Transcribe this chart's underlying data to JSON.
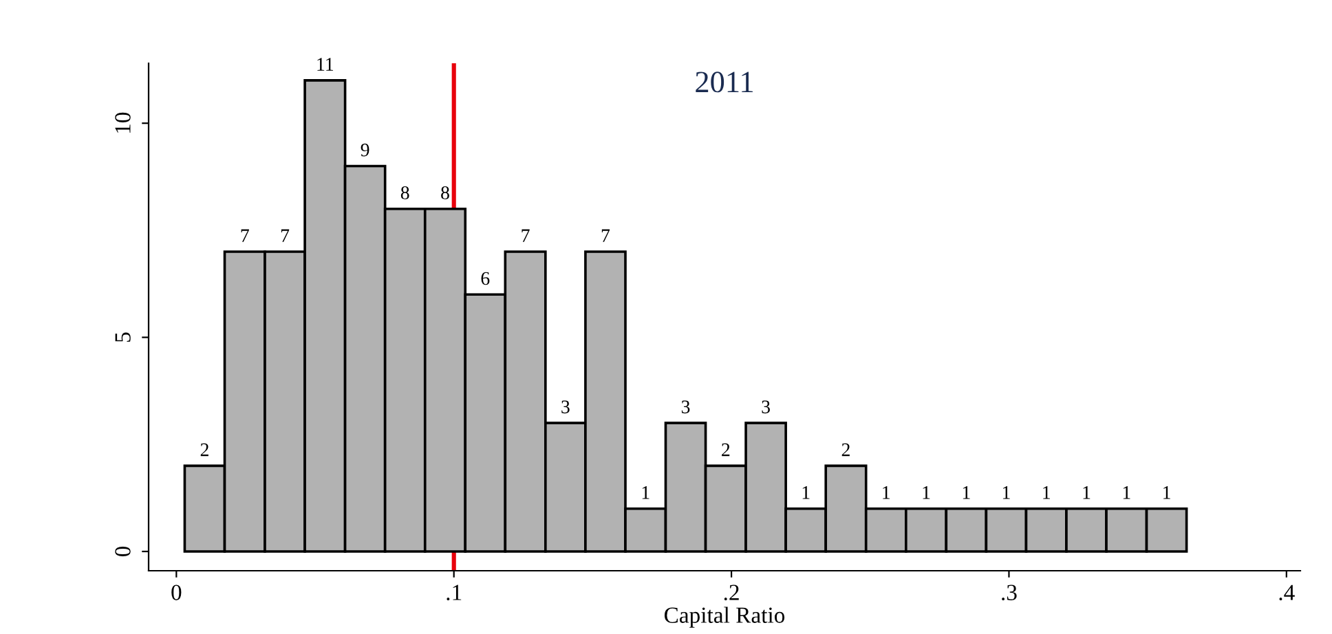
{
  "chart_data": {
    "type": "histogram",
    "title": "2011",
    "xlabel": "Capital Ratio",
    "bins": [
      0.003,
      0.0174,
      0.0319,
      0.0463,
      0.0608,
      0.0752,
      0.0896,
      0.1041,
      0.1185,
      0.133,
      0.1474,
      0.1618,
      0.1763,
      0.1907,
      0.2052,
      0.2196,
      0.234,
      0.2485,
      0.2629,
      0.2774,
      0.2918,
      0.3062,
      0.3207,
      0.3351,
      0.3496,
      0.364
    ],
    "values": [
      2,
      7,
      7,
      11,
      9,
      8,
      8,
      6,
      7,
      3,
      7,
      1,
      3,
      2,
      3,
      1,
      2,
      1,
      1,
      1,
      1,
      1,
      1,
      1,
      1
    ],
    "color": "#b2b2b2",
    "data_labels": true,
    "xlim": [
      -0.01,
      0.405
    ],
    "xticks": [
      {
        "value": 0,
        "label": "0"
      },
      {
        "value": 0.1,
        "label": ".1"
      },
      {
        "value": 0.2,
        "label": ".2"
      },
      {
        "value": 0.3,
        "label": ".3"
      },
      {
        "value": 0.4,
        "label": ".4"
      }
    ],
    "ylim": [
      -0.45,
      11.4
    ],
    "yticks": [
      0,
      5,
      10
    ],
    "ref_lines": [
      {
        "axis": "x",
        "value": 0.1,
        "color": "#e8000b"
      }
    ],
    "grid": false,
    "legend": false
  }
}
